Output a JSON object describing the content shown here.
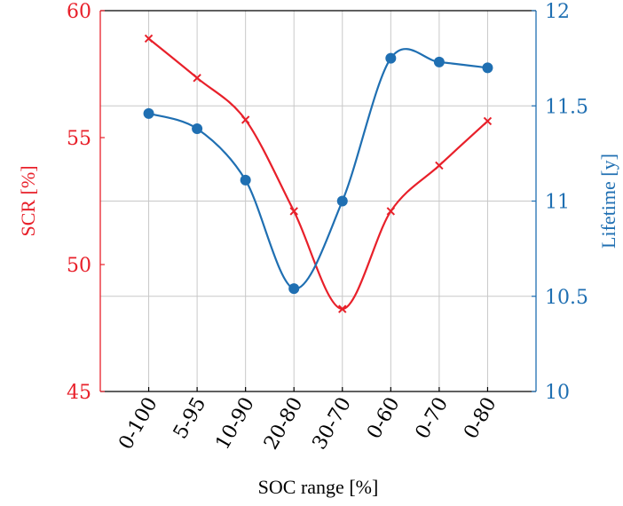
{
  "chart_data": {
    "type": "line",
    "xlabel": "SOC range [%]",
    "categories": [
      "0-100",
      "5-95",
      "10-90",
      "20-80",
      "30-70",
      "0-60",
      "0-70",
      "0-80"
    ],
    "y_left": {
      "label": "SCR [%]",
      "ylim": [
        45,
        60
      ],
      "ticks": [
        45,
        50,
        55,
        60
      ],
      "color": "#e8202a"
    },
    "y_right": {
      "label": "Lifetime [y]",
      "ylim": [
        10,
        12
      ],
      "ticks": [
        "10",
        "10.5",
        "11",
        "11.5",
        "12"
      ],
      "color": "#1f6fb2"
    },
    "grid": true,
    "series": [
      {
        "axis": "left",
        "marker": "cross",
        "color": "#e8202a",
        "values": [
          58.9,
          57.35,
          55.7,
          52.1,
          48.25,
          52.1,
          53.9,
          55.65
        ]
      },
      {
        "axis": "right",
        "marker": "circle",
        "color": "#1f6fb2",
        "values": [
          11.46,
          11.38,
          11.11,
          10.54,
          11.0,
          11.75,
          11.73,
          11.7
        ]
      }
    ]
  }
}
